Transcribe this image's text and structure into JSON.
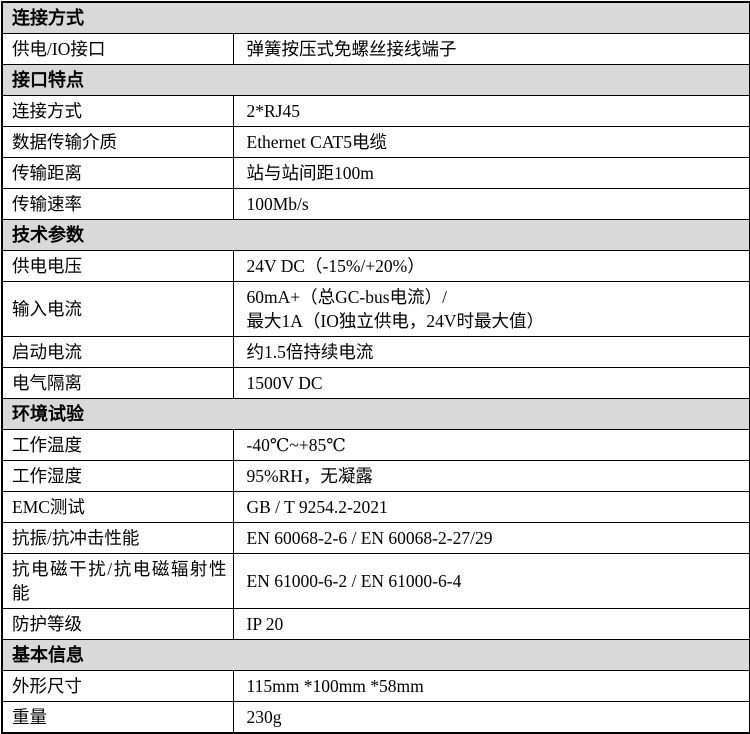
{
  "table": {
    "header_bg": "#d9d9d9",
    "border_color": "#000000",
    "text_color": "#000000",
    "sections": [
      {
        "header": "连接方式",
        "rows": [
          {
            "label": "供电/IO接口",
            "value": "弹簧按压式免螺丝接线端子"
          }
        ]
      },
      {
        "header": "接口特点",
        "rows": [
          {
            "label": "连接方式",
            "value": "2*RJ45"
          },
          {
            "label": "数据传输介质",
            "value": "Ethernet CAT5电缆"
          },
          {
            "label": "传输距离",
            "value": "站与站间距100m"
          },
          {
            "label": "传输速率",
            "value": "100Mb/s"
          }
        ]
      },
      {
        "header": "技术参数",
        "rows": [
          {
            "label": "供电电压",
            "value": "24V DC（-15%/+20%）"
          },
          {
            "label": "输入电流",
            "value": "60mA+（总GC-bus电流）/\n最大1A（IO独立供电，24V时最大值）"
          },
          {
            "label": "启动电流",
            "value": "约1.5倍持续电流"
          },
          {
            "label": "电气隔离",
            "value": "1500V DC"
          }
        ]
      },
      {
        "header": "环境试验",
        "rows": [
          {
            "label": "工作温度",
            "value": "-40℃~+85℃"
          },
          {
            "label": "工作湿度",
            "value": "95%RH，无凝露"
          },
          {
            "label": "EMC测试",
            "value": "GB / T 9254.2-2021"
          },
          {
            "label": "抗振/抗冲击性能",
            "value": "EN 60068-2-6 / EN 60068-2-27/29"
          },
          {
            "label": "抗电磁干扰/抗电磁辐射性能",
            "value": "EN 61000-6-2 / EN 61000-6-4"
          },
          {
            "label": "防护等级",
            "value": "IP 20"
          }
        ]
      },
      {
        "header": "基本信息",
        "rows": [
          {
            "label": "外形尺寸",
            "value": "115mm *100mm *58mm"
          },
          {
            "label": "重量",
            "value": "230g"
          }
        ]
      }
    ]
  }
}
